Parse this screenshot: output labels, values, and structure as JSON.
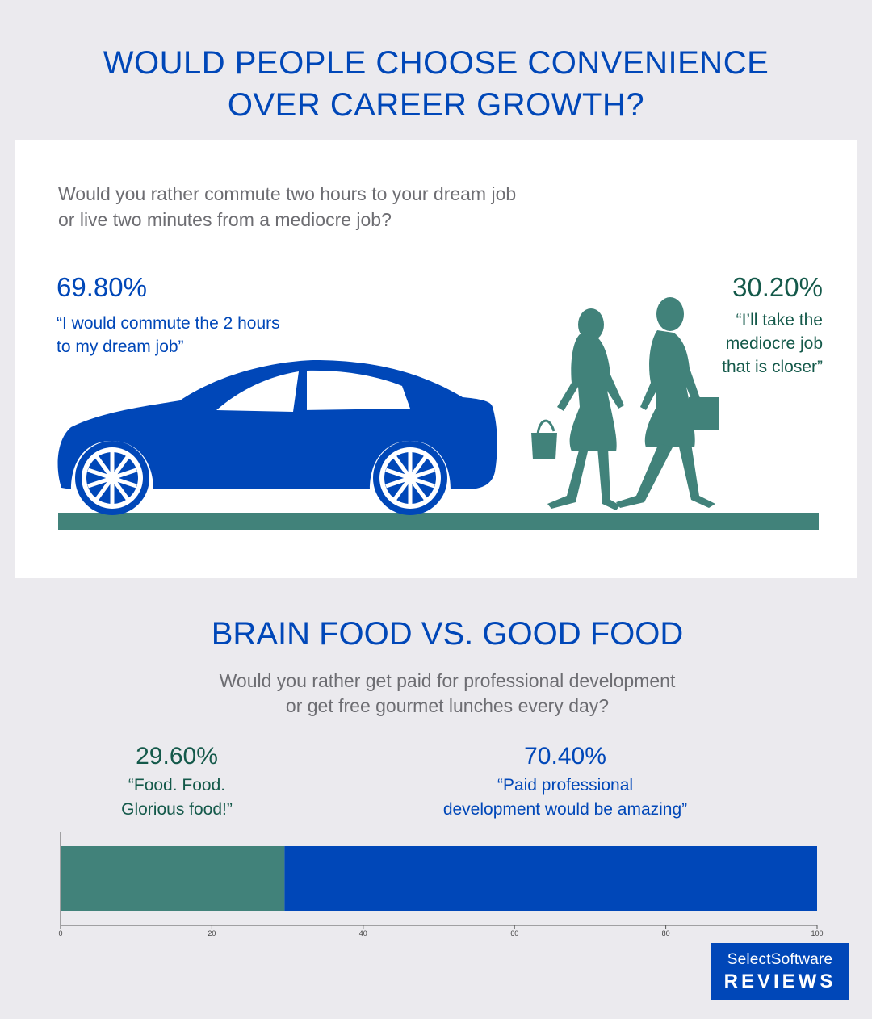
{
  "title_line1": "WOULD PEOPLE CHOOSE CONVENIENCE",
  "title_line2": "OVER CAREER GROWTH?",
  "commute": {
    "question_line1": "Would you rather commute two hours to your dream job",
    "question_line2": "or live two minutes from a mediocre job?",
    "left_pct": "69.80%",
    "left_quote_line1": "“I would commute the 2 hours",
    "left_quote_line2": "to my dream job”",
    "right_pct": "30.20%",
    "right_quote_line1": "“I’ll take the",
    "right_quote_line2": "mediocre job",
    "right_quote_line3": "that is closer”"
  },
  "food": {
    "title": "BRAIN FOOD VS. GOOD FOOD",
    "question_line1": "Would you rather get paid for professional development",
    "question_line2": "or get free gourmet lunches every day?",
    "left_pct": "29.60%",
    "left_quote_line1": "“Food. Food.",
    "left_quote_line2": "Glorious food!”",
    "right_pct": "70.40%",
    "right_quote_line1": "“Paid professional",
    "right_quote_line2": "development would be amazing”"
  },
  "chart_data": {
    "type": "bar",
    "orientation": "horizontal",
    "stacked": true,
    "series": [
      {
        "label": "29.60%",
        "value": 29.6,
        "color": "#41827a"
      },
      {
        "label": "70.40%",
        "value": 70.4,
        "color": "#0047b8"
      }
    ],
    "xlim": [
      0,
      100
    ],
    "xticks": [
      0,
      20,
      40,
      60,
      80,
      100
    ]
  },
  "colors": {
    "blue": "#0047b8",
    "teal": "#41827a",
    "dark_teal": "#14594a",
    "grey_text": "#6d6d72"
  },
  "logo": {
    "line1": "SelectSoftware",
    "line2": "REVIEWS"
  }
}
